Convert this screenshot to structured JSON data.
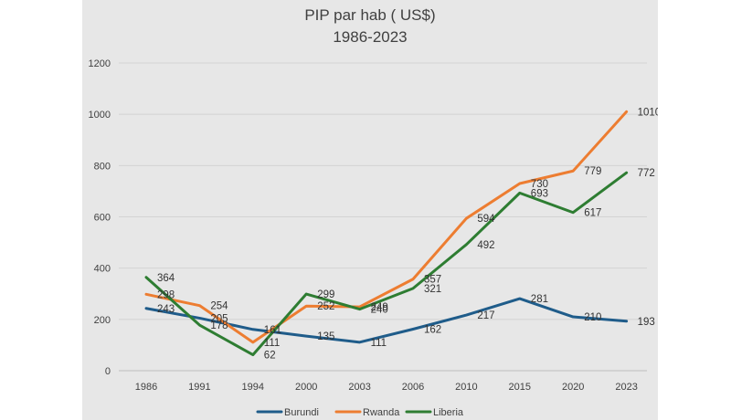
{
  "chart_data": {
    "type": "line",
    "title": "PIP par hab ( US$)",
    "subtitle": "1986-2023",
    "categories": [
      "1986",
      "1991",
      "1994",
      "2000",
      "2003",
      "2006",
      "2010",
      "2015",
      "2020",
      "2023"
    ],
    "ylim": [
      0,
      1200
    ],
    "yticks": [
      0,
      200,
      400,
      600,
      800,
      1000,
      1200
    ],
    "grid": true,
    "legend_position": "bottom",
    "series": [
      {
        "name": "Burundi",
        "color": "#1f5c8a",
        "values": [
          243,
          205,
          161,
          135,
          111,
          162,
          217,
          281,
          210,
          193
        ]
      },
      {
        "name": "Rwanda",
        "color": "#ed7d31",
        "values": [
          298,
          254,
          111,
          252,
          249,
          357,
          594,
          730,
          779,
          1010
        ]
      },
      {
        "name": "Liberia",
        "color": "#2e7d32",
        "values": [
          364,
          178,
          62,
          299,
          240,
          321,
          492,
          693,
          617,
          772
        ]
      }
    ]
  }
}
